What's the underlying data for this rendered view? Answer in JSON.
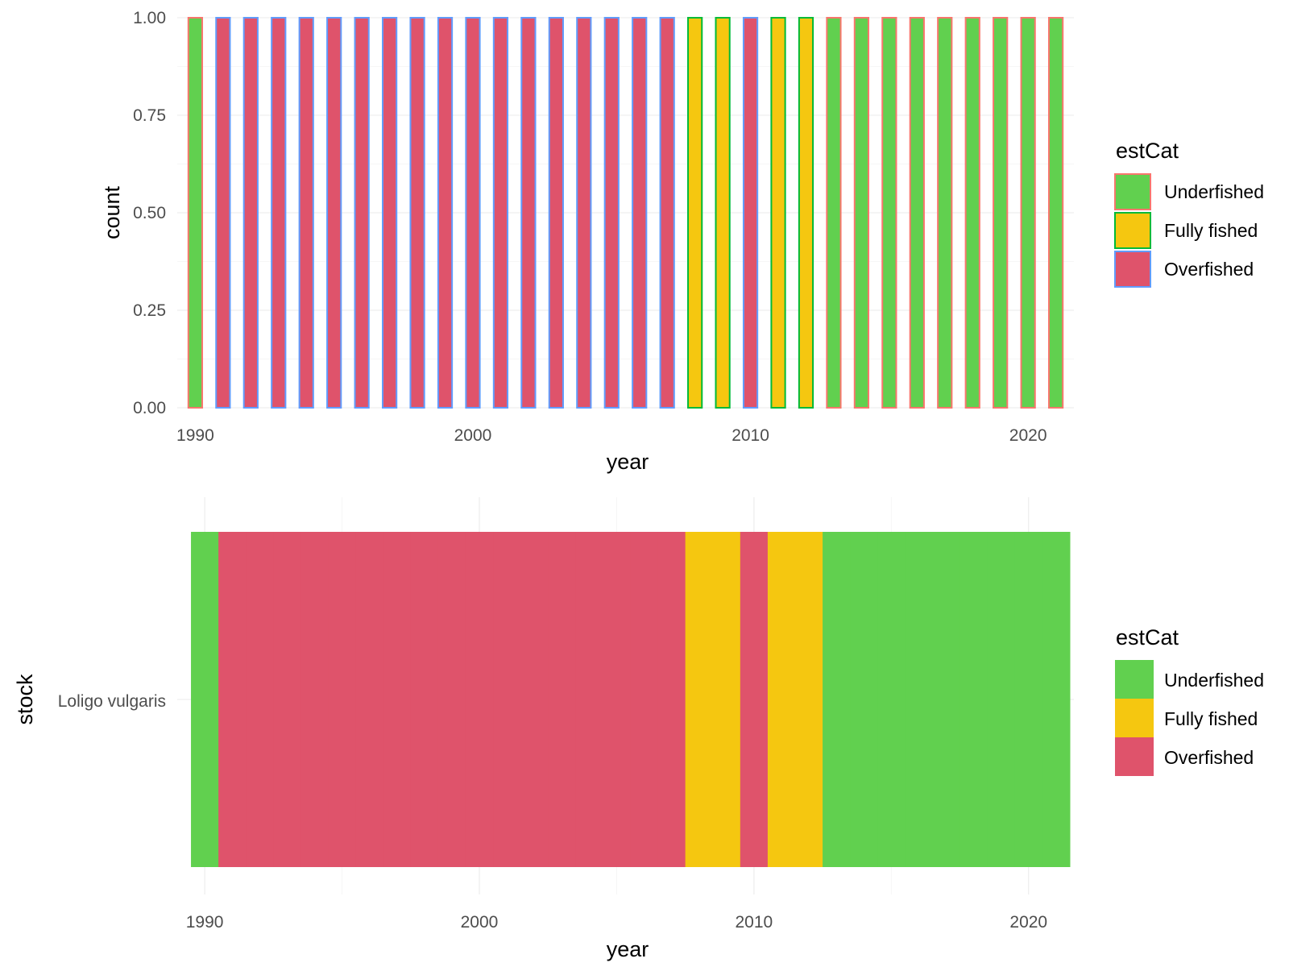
{
  "colors": {
    "Underfished": "#61d04f",
    "Fully fished": "#f5c710",
    "Overfished": "#df536b",
    "outline_red": "#f8766d",
    "outline_green": "#00ba38",
    "outline_blue": "#619cff"
  },
  "legend": {
    "title": "estCat",
    "entries": [
      "Underfished",
      "Fully fished",
      "Overfished"
    ]
  },
  "chart_data": [
    {
      "type": "bar",
      "title": "",
      "xlabel": "year",
      "ylabel": "count",
      "xlim": [
        1989.35,
        2021.65
      ],
      "ylim": [
        0,
        1
      ],
      "x_ticks": [
        1990,
        2000,
        2010,
        2020
      ],
      "y_ticks": [
        0.0,
        0.25,
        0.5,
        0.75,
        1.0
      ],
      "y_tick_labels": [
        "0.00",
        "0.25",
        "0.50",
        "0.75",
        "1.00"
      ],
      "grid": true,
      "legend_position": "right",
      "bar_width_years": 0.5,
      "x": [
        1990,
        1991,
        1992,
        1993,
        1994,
        1995,
        1996,
        1997,
        1998,
        1999,
        2000,
        2001,
        2002,
        2003,
        2004,
        2005,
        2006,
        2007,
        2008,
        2009,
        2010,
        2011,
        2012,
        2013,
        2014,
        2015,
        2016,
        2017,
        2018,
        2019,
        2020,
        2021
      ],
      "values": [
        1,
        1,
        1,
        1,
        1,
        1,
        1,
        1,
        1,
        1,
        1,
        1,
        1,
        1,
        1,
        1,
        1,
        1,
        1,
        1,
        1,
        1,
        1,
        1,
        1,
        1,
        1,
        1,
        1,
        1,
        1,
        1
      ],
      "category": [
        "Underfished",
        "Overfished",
        "Overfished",
        "Overfished",
        "Overfished",
        "Overfished",
        "Overfished",
        "Overfished",
        "Overfished",
        "Overfished",
        "Overfished",
        "Overfished",
        "Overfished",
        "Overfished",
        "Overfished",
        "Overfished",
        "Overfished",
        "Overfished",
        "Fully fished",
        "Fully fished",
        "Overfished",
        "Fully fished",
        "Fully fished",
        "Underfished",
        "Underfished",
        "Underfished",
        "Underfished",
        "Underfished",
        "Underfished",
        "Underfished",
        "Underfished",
        "Underfished"
      ],
      "outline": [
        "outline_red",
        "outline_blue",
        "outline_blue",
        "outline_blue",
        "outline_blue",
        "outline_blue",
        "outline_blue",
        "outline_blue",
        "outline_blue",
        "outline_blue",
        "outline_blue",
        "outline_blue",
        "outline_blue",
        "outline_blue",
        "outline_blue",
        "outline_blue",
        "outline_blue",
        "outline_blue",
        "outline_green",
        "outline_green",
        "outline_blue",
        "outline_green",
        "outline_green",
        "outline_red",
        "outline_red",
        "outline_red",
        "outline_red",
        "outline_red",
        "outline_red",
        "outline_red",
        "outline_red",
        "outline_red"
      ]
    },
    {
      "type": "heatmap",
      "title": "",
      "xlabel": "year",
      "ylabel": "stock",
      "xlim": [
        1989.0,
        2021.65
      ],
      "x_ticks": [
        1990,
        2000,
        2010,
        2020
      ],
      "grid": true,
      "legend_position": "right",
      "stocks": [
        "Loligo vulgaris"
      ],
      "x": [
        1990,
        1991,
        1992,
        1993,
        1994,
        1995,
        1996,
        1997,
        1998,
        1999,
        2000,
        2001,
        2002,
        2003,
        2004,
        2005,
        2006,
        2007,
        2008,
        2009,
        2010,
        2011,
        2012,
        2013,
        2014,
        2015,
        2016,
        2017,
        2018,
        2019,
        2020,
        2021
      ],
      "category": [
        "Underfished",
        "Overfished",
        "Overfished",
        "Overfished",
        "Overfished",
        "Overfished",
        "Overfished",
        "Overfished",
        "Overfished",
        "Overfished",
        "Overfished",
        "Overfished",
        "Overfished",
        "Overfished",
        "Overfished",
        "Overfished",
        "Overfished",
        "Overfished",
        "Fully fished",
        "Fully fished",
        "Overfished",
        "Fully fished",
        "Fully fished",
        "Underfished",
        "Underfished",
        "Underfished",
        "Underfished",
        "Underfished",
        "Underfished",
        "Underfished",
        "Underfished",
        "Underfished"
      ]
    }
  ]
}
